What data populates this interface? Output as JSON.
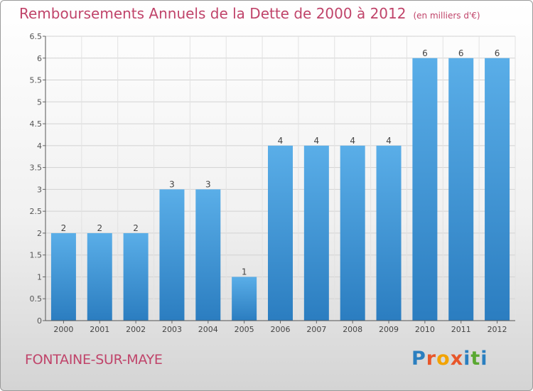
{
  "header": {
    "title": "Remboursements Annuels de la Dette de 2000 à 2012",
    "unit": "(en milliers d'€)"
  },
  "footer": {
    "commune": "FONTAINE-SUR-MAYE",
    "logo": "Proxiti"
  },
  "colors": {
    "title": "#c0446a",
    "bar_light": "#5aaee8",
    "bar_dark": "#2b7dc0"
  },
  "chart_data": {
    "type": "bar",
    "categories": [
      "2000",
      "2001",
      "2002",
      "2003",
      "2004",
      "2005",
      "2006",
      "2007",
      "2008",
      "2009",
      "2010",
      "2011",
      "2012"
    ],
    "values": [
      2,
      2,
      2,
      3,
      3,
      1,
      4,
      4,
      4,
      4,
      6,
      6,
      6
    ],
    "data_labels": [
      "2",
      "2",
      "2",
      "3",
      "3",
      "1",
      "4",
      "4",
      "4",
      "4",
      "6",
      "6",
      "6"
    ],
    "yticks": [
      "0",
      "0.5",
      "1",
      "1.5",
      "2",
      "2.5",
      "3",
      "3.5",
      "4",
      "4.5",
      "5",
      "5.5",
      "6",
      "6.5"
    ],
    "ylim": [
      0,
      6.5
    ],
    "grid": true,
    "legend": "none"
  }
}
